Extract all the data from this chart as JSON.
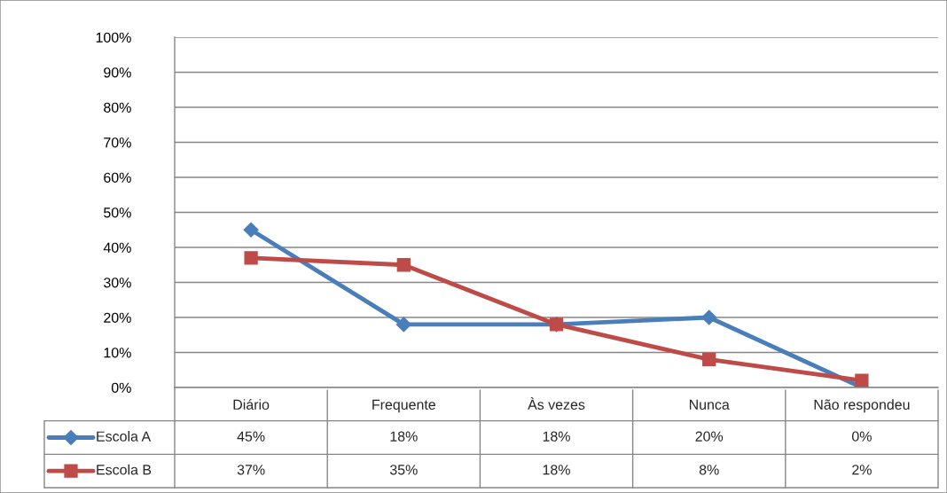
{
  "chart_data": {
    "type": "line",
    "categories": [
      "Diário",
      "Frequente",
      "Às vezes",
      "Nunca",
      "Não respondeu"
    ],
    "series": [
      {
        "name": "Escola A",
        "color": "#4a7ebb",
        "marker": "diamond",
        "values": [
          45,
          18,
          18,
          20,
          0
        ],
        "value_labels": [
          "45%",
          "18%",
          "18%",
          "20%",
          "0%"
        ]
      },
      {
        "name": "Escola B",
        "color": "#be4b48",
        "marker": "square",
        "values": [
          37,
          35,
          18,
          8,
          2
        ],
        "value_labels": [
          "37%",
          "35%",
          "18%",
          "8%",
          "2%"
        ]
      }
    ],
    "ylim": [
      0,
      100
    ],
    "yticks": [
      {
        "value": 0,
        "label": "0%"
      },
      {
        "value": 10,
        "label": "10%"
      },
      {
        "value": 20,
        "label": "20%"
      },
      {
        "value": 30,
        "label": "30%"
      },
      {
        "value": 40,
        "label": "40%"
      },
      {
        "value": 50,
        "label": "50%"
      },
      {
        "value": 60,
        "label": "60%"
      },
      {
        "value": 70,
        "label": "70%"
      },
      {
        "value": 80,
        "label": "80%"
      },
      {
        "value": 90,
        "label": "90%"
      },
      {
        "value": 100,
        "label": "100%"
      }
    ],
    "grid": "y",
    "legend": "bottom"
  }
}
